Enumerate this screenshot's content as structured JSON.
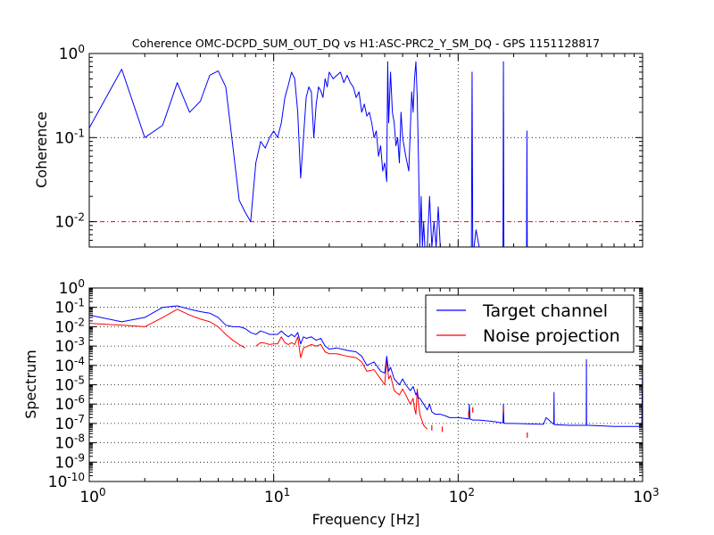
{
  "title": "Coherence OMC-DCPD_SUM_OUT_DQ vs H1:ASC-PRC2_Y_SM_DQ - GPS 1151128817",
  "colors": {
    "coherence": "#0000ff",
    "target": "#0000ff",
    "noise": "#ff0000",
    "threshold": "#ff0000",
    "grid": "#000000"
  },
  "chart_data": [
    {
      "type": "line",
      "title": "Coherence OMC-DCPD_SUM_OUT_DQ vs H1:ASC-PRC2_Y_SM_DQ - GPS 1151128817",
      "xscale": "log",
      "yscale": "log",
      "xlim": [
        1,
        1000
      ],
      "ylim": [
        0.005,
        1
      ],
      "xlabel": "",
      "ylabel": "Coherence",
      "y_ticks": [
        {
          "value": 1,
          "base": "10",
          "exp": "0"
        },
        {
          "value": 0.1,
          "base": "10",
          "exp": "-1"
        },
        {
          "value": 0.01,
          "base": "10",
          "exp": "-2"
        }
      ],
      "grid": true,
      "threshold": 0.01,
      "series": [
        {
          "color": "#0000ff",
          "x": [
            1,
            1.5,
            2,
            2.5,
            3,
            3.5,
            4,
            4.5,
            5,
            5.5,
            6,
            6.5,
            7,
            7.5,
            8,
            8.5,
            9,
            9.5,
            10,
            10.5,
            11,
            11.5,
            12,
            12.5,
            13,
            13.5,
            14,
            14.5,
            15,
            15.5,
            16,
            16.5,
            17,
            17.5,
            18,
            18.5,
            19,
            19.5,
            20,
            21,
            22,
            23,
            24,
            25,
            26,
            27,
            28,
            29,
            30,
            31,
            32,
            33,
            34,
            35,
            36,
            37,
            38,
            39,
            40,
            41,
            41.5,
            42,
            43,
            44,
            45,
            46,
            47,
            48,
            49,
            50,
            52,
            54,
            56,
            57,
            58,
            59,
            60,
            61,
            62,
            63,
            64,
            65,
            66,
            68,
            70,
            72,
            74,
            76,
            78,
            80,
            82,
            85,
            90,
            95,
            100,
            105,
            110,
            115,
            118,
            119,
            120,
            121,
            122,
            125,
            130,
            135,
            140,
            145,
            150,
            160,
            170,
            175,
            176,
            177,
            178,
            180,
            190,
            200,
            210,
            220,
            230,
            235,
            236,
            237,
            238,
            240
          ],
          "y": [
            0.13,
            0.65,
            0.1,
            0.14,
            0.45,
            0.2,
            0.27,
            0.55,
            0.62,
            0.4,
            0.08,
            0.018,
            0.013,
            0.01,
            0.05,
            0.09,
            0.075,
            0.1,
            0.12,
            0.1,
            0.15,
            0.3,
            0.42,
            0.6,
            0.5,
            0.2,
            0.033,
            0.1,
            0.3,
            0.4,
            0.35,
            0.1,
            0.25,
            0.4,
            0.36,
            0.3,
            0.5,
            0.4,
            0.6,
            0.5,
            0.55,
            0.6,
            0.45,
            0.55,
            0.45,
            0.4,
            0.3,
            0.35,
            0.2,
            0.25,
            0.18,
            0.2,
            0.15,
            0.1,
            0.12,
            0.06,
            0.08,
            0.04,
            0.05,
            0.03,
            0.8,
            0.15,
            0.6,
            0.2,
            0.15,
            0.08,
            0.1,
            0.05,
            0.2,
            0.1,
            0.06,
            0.04,
            0.35,
            0.2,
            0.5,
            0.8,
            0.3,
            0.05,
            0.005,
            0.02,
            0.005,
            0.01,
            0.005,
            0.005,
            0.02,
            0.005,
            0.01,
            0.005,
            0.015,
            0.005,
            0.005,
            0.005,
            0.005,
            0.005,
            0.005,
            0.005,
            0.005,
            0.005,
            0.005,
            0.6,
            0.005,
            0.005,
            0.005,
            0.008,
            0.005,
            0.005,
            0.005,
            0.005,
            0.005,
            0.005,
            0.005,
            0.005,
            0.8,
            0.005,
            0.005,
            0.005,
            0.005,
            0.005,
            0.005,
            0.005,
            0.005,
            0.005,
            0.12,
            0.005,
            0.005,
            0.005
          ]
        }
      ]
    },
    {
      "type": "line",
      "title": "",
      "xscale": "log",
      "yscale": "log",
      "xlim": [
        1,
        1000
      ],
      "ylim": [
        1e-10,
        1
      ],
      "xlabel": "Frequency [Hz]",
      "ylabel": "Spectrum",
      "x_ticks": [
        {
          "value": 1,
          "base": "10",
          "exp": "0"
        },
        {
          "value": 10,
          "base": "10",
          "exp": "1"
        },
        {
          "value": 100,
          "base": "10",
          "exp": "2"
        },
        {
          "value": 1000,
          "base": "10",
          "exp": "3"
        }
      ],
      "y_ticks": [
        {
          "value": 1,
          "base": "10",
          "exp": "0"
        },
        {
          "value": 0.1,
          "base": "10",
          "exp": "-1"
        },
        {
          "value": 0.01,
          "base": "10",
          "exp": "-2"
        },
        {
          "value": 0.001,
          "base": "10",
          "exp": "-3"
        },
        {
          "value": 0.0001,
          "base": "10",
          "exp": "-4"
        },
        {
          "value": 1e-05,
          "base": "10",
          "exp": "-5"
        },
        {
          "value": 1e-06,
          "base": "10",
          "exp": "-6"
        },
        {
          "value": 1e-07,
          "base": "10",
          "exp": "-7"
        },
        {
          "value": 1e-08,
          "base": "10",
          "exp": "-8"
        },
        {
          "value": 1e-09,
          "base": "10",
          "exp": "-9"
        },
        {
          "value": 1e-10,
          "base": "10",
          "exp": "-10"
        }
      ],
      "grid": true,
      "legend": "top-right",
      "series": [
        {
          "name": "Target channel",
          "color": "#0000ff",
          "x": [
            1,
            1.5,
            2,
            2.5,
            3,
            3.5,
            4,
            4.5,
            5,
            5.5,
            6,
            6.5,
            7,
            7.5,
            8,
            8.5,
            9,
            9.5,
            10,
            10.5,
            11,
            11.5,
            12,
            12.5,
            13,
            13.5,
            14,
            14.5,
            15,
            16,
            17,
            18,
            19,
            20,
            22,
            25,
            28,
            30,
            32,
            35,
            38,
            40,
            41,
            42,
            43,
            45,
            48,
            50,
            52,
            55,
            57,
            58,
            59,
            60,
            61,
            62,
            65,
            68,
            70,
            72,
            75,
            80,
            85,
            90,
            100,
            110,
            114,
            115,
            116,
            120,
            130,
            150,
            160,
            170,
            175,
            176,
            177,
            180,
            200,
            240,
            290,
            300,
            330,
            331,
            332,
            340,
            400,
            480,
            495,
            496,
            497,
            500,
            510,
            600,
            700,
            800,
            990,
            999,
            1000
          ],
          "y": [
            0.04,
            0.018,
            0.03,
            0.1,
            0.12,
            0.08,
            0.06,
            0.05,
            0.03,
            0.012,
            0.01,
            0.01,
            0.008,
            0.005,
            0.004,
            0.006,
            0.005,
            0.004,
            0.004,
            0.004,
            0.006,
            0.004,
            0.003,
            0.004,
            0.003,
            0.005,
            0.0013,
            0.003,
            0.0025,
            0.003,
            0.002,
            0.0025,
            0.001,
            0.0007,
            0.0008,
            0.0006,
            0.0005,
            0.0003,
            0.0001,
            0.00015,
            5e-05,
            4e-05,
            0.0003,
            5e-05,
            8e-05,
            2e-05,
            1e-05,
            2e-05,
            1e-05,
            5e-06,
            8e-06,
            5e-06,
            3e-06,
            4e-06,
            2e-06,
            2e-06,
            1e-06,
            5e-07,
            1e-06,
            4e-07,
            3e-07,
            3e-07,
            2.5e-07,
            2e-07,
            2e-07,
            1.8e-07,
            1.7e-07,
            1e-06,
            1.7e-07,
            1.5e-07,
            1.5e-07,
            1.3e-07,
            1.2e-07,
            1.1e-07,
            1.1e-07,
            1e-06,
            1.1e-07,
            1e-07,
            1e-07,
            9.5e-08,
            9e-08,
            2e-07,
            9e-08,
            4e-06,
            9e-08,
            8.5e-08,
            8e-08,
            8e-08,
            8e-08,
            0.0002,
            8e-08,
            8e-08,
            8e-08,
            7.5e-08,
            7e-08,
            7e-08,
            7e-08,
            0.0001,
            7e-08
          ]
        },
        {
          "name": "Noise projection",
          "color": "#ff0000",
          "x": [
            1,
            1.5,
            2,
            2.5,
            3,
            3.5,
            4,
            4.5,
            5,
            5.5,
            6,
            6.5,
            7,
            null,
            8,
            8.5,
            9,
            9.5,
            10,
            10.5,
            11,
            11.5,
            12,
            12.5,
            13,
            13.5,
            14,
            14.5,
            15,
            16,
            17,
            18,
            19,
            20,
            22,
            25,
            28,
            30,
            32,
            35,
            38,
            40,
            41,
            42,
            43,
            45,
            48,
            50,
            52,
            55,
            57,
            58,
            59,
            60,
            61,
            62,
            65,
            68
          ],
          "y": [
            0.015,
            0.012,
            0.01,
            0.03,
            0.08,
            0.04,
            0.025,
            0.018,
            0.01,
            0.004,
            0.002,
            0.0012,
            0.0008,
            null,
            0.001,
            0.0015,
            0.0014,
            0.0012,
            0.0013,
            0.0013,
            0.003,
            0.0015,
            0.0012,
            0.0015,
            0.0012,
            0.003,
            0.00025,
            0.0008,
            0.0009,
            0.0012,
            0.001,
            0.0012,
            0.0005,
            0.0004,
            0.0004,
            0.0003,
            0.00025,
            0.00015,
            5e-05,
            6e-05,
            2e-05,
            1e-05,
            0.0002,
            2e-05,
            3e-05,
            5e-06,
            3e-06,
            6e-06,
            3e-06,
            1e-06,
            2e-06,
            6e-07,
            3e-07,
            6e-06,
            1e-06,
            3e-07,
            8e-08,
            5e-08
          ]
        }
      ],
      "noise_marks": [
        {
          "x": 72,
          "y": 6e-08
        },
        {
          "x": 82,
          "y": 5e-08
        },
        {
          "x": 114,
          "y": 3e-07
        },
        {
          "x": 120,
          "y": 5e-07
        },
        {
          "x": 176,
          "y": 5e-07
        },
        {
          "x": 237,
          "y": 2.5e-08
        }
      ]
    }
  ]
}
